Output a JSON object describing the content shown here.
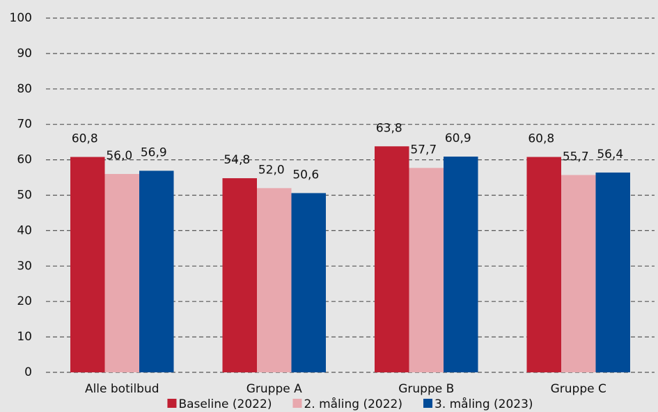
{
  "chart_data": {
    "type": "bar",
    "categories": [
      "Alle botilbud",
      "Gruppe A",
      "Gruppe B",
      "Gruppe C"
    ],
    "series": [
      {
        "name": "Baseline (2022)",
        "color": "#c01f32",
        "values": [
          60.8,
          54.8,
          63.8,
          60.8
        ],
        "value_labels": [
          "60,8",
          "54,8",
          "63,8",
          "60,8"
        ]
      },
      {
        "name": "2. måling (2022)",
        "color": "#e8a8ae",
        "values": [
          56.0,
          52.0,
          57.7,
          55.7
        ],
        "value_labels": [
          "56,0",
          "52,0",
          "57,7",
          "55,7"
        ]
      },
      {
        "name": "3. måling (2023)",
        "color": "#004b97",
        "values": [
          56.9,
          50.6,
          60.9,
          56.4
        ],
        "value_labels": [
          "56,9",
          "50,6",
          "60,9",
          "56,4"
        ]
      }
    ],
    "ylim": [
      0,
      100
    ],
    "yticks": [
      0,
      10,
      20,
      30,
      40,
      50,
      60,
      70,
      80,
      90,
      100
    ],
    "grid": true,
    "legend": "bottom"
  }
}
